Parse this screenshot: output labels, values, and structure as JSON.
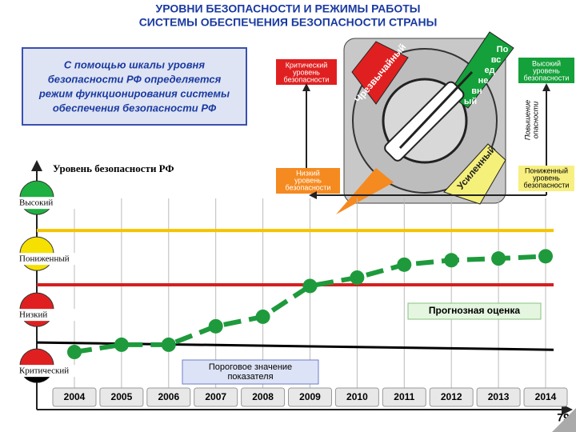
{
  "header": {
    "title": [
      "УРОВНИ БЕЗОПАСНОСТИ И РЕЖИМЫ РАБОТЫ",
      "СИСТЕМЫ ОБЕСПЕЧЕНИЯ БЕЗОПАСНОСТИ  СТРАНЫ"
    ]
  },
  "note": [
    "С помощью шкалы уровня",
    "безопасности РФ определяется",
    "режим функционирования системы",
    "обеспечения безопасности РФ"
  ],
  "dial": {
    "critical": [
      "Критический",
      "уровень",
      "безопасности"
    ],
    "low": [
      "Низкий",
      "уровень",
      "безопасности"
    ],
    "high": [
      "Высокий",
      "уровень",
      "безопасности"
    ],
    "reduced": [
      "Пониженный",
      "уровень",
      "безопасности"
    ],
    "danger": [
      "Повышение",
      "опасности"
    ],
    "modes": {
      "emergency": "Чрезвычайный",
      "daily": [
        "По",
        "вс",
        "ед",
        "не",
        "вн",
        "ый"
      ],
      "enhanced": "Усиленный"
    }
  },
  "page_number": "79",
  "chart_data": {
    "type": "line",
    "ylabel": "Уровень безопасности РФ",
    "categories": [
      "2004",
      "2005",
      "2006",
      "2007",
      "2008",
      "2009",
      "2010",
      "2011",
      "2012",
      "2013",
      "2014"
    ],
    "series": [
      {
        "color": "#1e9a3c",
        "values": [
          0.33,
          0.46,
          0.46,
          0.79,
          0.96,
          1.51,
          1.66,
          1.89,
          1.97,
          2.0,
          2.04
        ]
      }
    ],
    "thresholds": [
      {
        "color": "#f5c400",
        "value": 2.5
      },
      {
        "color": "#d42020",
        "value": 1.53
      }
    ],
    "threshold_line": {
      "color": "#000000",
      "values": [
        0.5,
        0.37
      ]
    },
    "ylim": [
      -0.67,
      3.76
    ],
    "yticks": [
      {
        "value": 0,
        "label": "Критический"
      },
      {
        "value": 1,
        "label": "Низкий"
      },
      {
        "value": 2,
        "label": "Пониженный"
      },
      {
        "value": 3,
        "label": "Высокий"
      }
    ],
    "annotations": {
      "forecast": "Прогнозная оценка",
      "threshold": [
        "Пороговое значение",
        "показателя"
      ]
    }
  }
}
